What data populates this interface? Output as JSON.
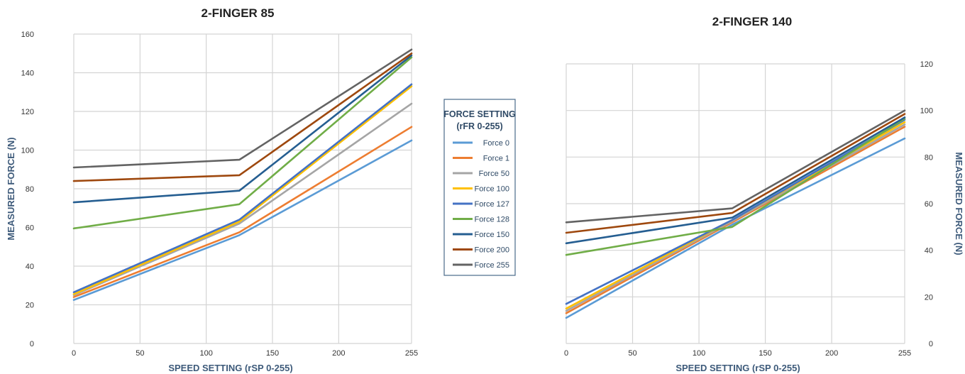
{
  "chart_data": [
    {
      "type": "line",
      "title": "2-FINGER 85",
      "xlabel": "SPEED SETTING (rSP 0-255)",
      "ylabel": "MEASURED FORCE (N)",
      "x": [
        0,
        125,
        255
      ],
      "xticks": [
        0,
        50,
        100,
        150,
        200,
        255
      ],
      "yticks": [
        0,
        20,
        40,
        60,
        80,
        100,
        120,
        140,
        160
      ],
      "xlim": [
        0,
        255
      ],
      "ylim": [
        0,
        160
      ],
      "yaxis_side": "left",
      "grid": true,
      "series": [
        {
          "name": "Force 0",
          "color": "#5b9bd5",
          "values": [
            22.5,
            56,
            105
          ]
        },
        {
          "name": "Force 1",
          "color": "#ed7d31",
          "values": [
            24,
            57.5,
            112
          ]
        },
        {
          "name": "Force 50",
          "color": "#a5a5a5",
          "values": [
            25,
            62,
            124
          ]
        },
        {
          "name": "Force 100",
          "color": "#ffc000",
          "values": [
            25.5,
            63,
            133
          ]
        },
        {
          "name": "Force 127",
          "color": "#4472c4",
          "values": [
            26.5,
            64,
            134
          ]
        },
        {
          "name": "Force 128",
          "color": "#70ad47",
          "values": [
            59.5,
            72,
            148
          ]
        },
        {
          "name": "Force 150",
          "color": "#255e91",
          "values": [
            73,
            79,
            149
          ]
        },
        {
          "name": "Force 200",
          "color": "#9e480e",
          "values": [
            84,
            87,
            150
          ]
        },
        {
          "name": "Force 255",
          "color": "#636363",
          "values": [
            91,
            95,
            152
          ]
        }
      ]
    },
    {
      "type": "line",
      "title": "2-FINGER 140",
      "xlabel": "SPEED SETTING (rSP 0-255)",
      "ylabel": "MEASURED FORCE (N)",
      "x": [
        0,
        125,
        255
      ],
      "xticks": [
        0,
        50,
        100,
        150,
        200,
        255
      ],
      "yticks": [
        0,
        20,
        40,
        60,
        80,
        100,
        120
      ],
      "xlim": [
        0,
        255
      ],
      "ylim": [
        0,
        120
      ],
      "yaxis_side": "right",
      "grid": true,
      "series": [
        {
          "name": "Force 0",
          "color": "#5b9bd5",
          "values": [
            11,
            51,
            88
          ]
        },
        {
          "name": "Force 1",
          "color": "#ed7d31",
          "values": [
            13,
            52,
            93
          ]
        },
        {
          "name": "Force 50",
          "color": "#a5a5a5",
          "values": [
            14,
            52.5,
            94
          ]
        },
        {
          "name": "Force 100",
          "color": "#ffc000",
          "values": [
            15,
            53,
            95
          ]
        },
        {
          "name": "Force 127",
          "color": "#4472c4",
          "values": [
            17,
            53,
            96
          ]
        },
        {
          "name": "Force 128",
          "color": "#70ad47",
          "values": [
            38,
            50,
            96.5
          ]
        },
        {
          "name": "Force 150",
          "color": "#255e91",
          "values": [
            43,
            54,
            97
          ]
        },
        {
          "name": "Force 200",
          "color": "#9e480e",
          "values": [
            47.5,
            56,
            98.5
          ]
        },
        {
          "name": "Force 255",
          "color": "#636363",
          "values": [
            52,
            58,
            100
          ]
        }
      ]
    }
  ],
  "legend": {
    "title_line1": "FORCE SETTING",
    "title_line2": "(rFR 0-255)",
    "items": [
      {
        "label": "Force 0",
        "color": "#5b9bd5"
      },
      {
        "label": "Force 1",
        "color": "#ed7d31"
      },
      {
        "label": "Force 50",
        "color": "#a5a5a5"
      },
      {
        "label": "Force 100",
        "color": "#ffc000"
      },
      {
        "label": "Force 127",
        "color": "#4472c4"
      },
      {
        "label": "Force 128",
        "color": "#70ad47"
      },
      {
        "label": "Force 150",
        "color": "#255e91"
      },
      {
        "label": "Force 200",
        "color": "#9e480e"
      },
      {
        "label": "Force 255",
        "color": "#636363"
      }
    ]
  }
}
